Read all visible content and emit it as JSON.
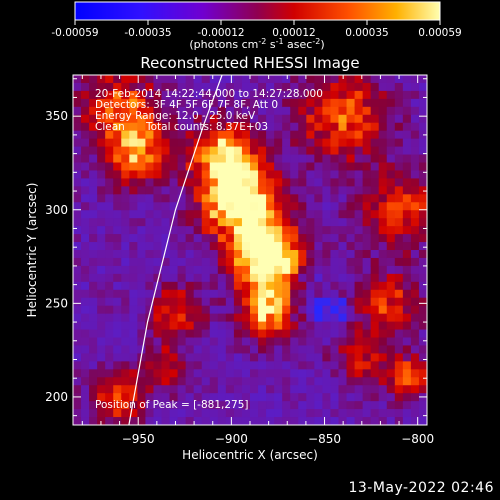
{
  "chart_data": {
    "type": "heatmap",
    "title": "Reconstructed RHESSI Image",
    "xlabel": "Heliocentric X (arcsec)",
    "ylabel": "Heliocentric Y (arcsec)",
    "xlim": [
      -985,
      -795
    ],
    "ylim": [
      185,
      372
    ],
    "xticks": [
      -950,
      -900,
      -850,
      -800
    ],
    "yticks": [
      200,
      250,
      300,
      350
    ],
    "colorbar": {
      "range": [
        -0.00059,
        0.00059
      ],
      "ticks": [
        "-0.00059",
        "-0.00035",
        "-0.00012",
        "0.00012",
        "0.00035",
        "0.00059"
      ],
      "units": "(photons cm",
      "colors": [
        "#0000ff",
        "#4000ff",
        "#a000d0",
        "#e00000",
        "#ff6000",
        "#ffff80"
      ]
    },
    "annotations": [
      "20-Feb-2014 14:22:44.000 to 14:27:28.000",
      "Detectors: 3F 4F 5F 6F 7F 8F, Att 0",
      "Energy Range: 12.0 - 25.0 keV",
      "Clean",
      "Total counts: 8.37E+03"
    ],
    "peak_label": "Position of Peak = [-881,275]",
    "peak": [
      -881,
      275
    ],
    "limb_curve": [
      [
        -955,
        185
      ],
      [
        -945,
        240
      ],
      [
        -930,
        300
      ],
      [
        -915,
        345
      ],
      [
        -905,
        372
      ]
    ]
  },
  "footer": {
    "timestamp": "13-May-2022 02:46"
  }
}
